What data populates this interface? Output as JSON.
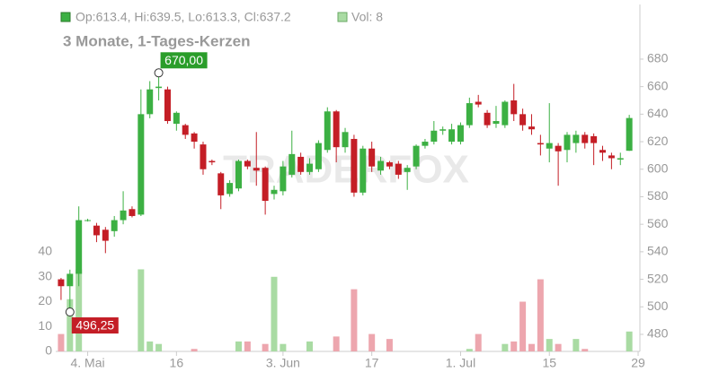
{
  "chart_data": {
    "type": "candlestick",
    "legend_text": "Op:613.4, Hi:639.5, Lo:613.3, Cl:637.2",
    "volume_legend_text": "Vol: 8",
    "subtitle": "3 Monate, 1-Tages-Kerzen",
    "watermark": "TRADERFOX",
    "up_color": "#3cb043",
    "down_color": "#c41e26",
    "volume_up_color": "#a9dba3",
    "volume_down_color": "#eda6ae",
    "open": [
      520,
      515,
      524,
      563,
      559,
      556,
      555,
      563,
      571,
      567,
      640,
      659,
      658,
      633,
      632,
      626,
      618,
      606,
      597,
      582,
      586,
      606,
      601,
      601,
      582,
      584,
      596,
      609,
      598,
      600,
      614,
      642,
      616,
      622,
      583,
      615,
      599,
      605,
      604,
      598,
      602,
      617,
      620,
      628,
      620,
      620,
      632,
      649,
      641,
      633,
      632,
      650,
      640,
      631,
      619,
      615,
      617,
      614,
      619,
      625,
      624,
      614,
      610,
      607,
      613.4
    ],
    "high": [
      521,
      527,
      573,
      564,
      561,
      558,
      566,
      584,
      573,
      658,
      664,
      670,
      660,
      642,
      633,
      627,
      620,
      607,
      598,
      592,
      607,
      607,
      627,
      602,
      588,
      606,
      628,
      612,
      608,
      621,
      645,
      643,
      630,
      625,
      617,
      620,
      609,
      606,
      606,
      603,
      618,
      622,
      635,
      631,
      633,
      634,
      652,
      654,
      643,
      646,
      650,
      662,
      644,
      640,
      625,
      648,
      619,
      627,
      628,
      627,
      626,
      617,
      612,
      612,
      639.5
    ],
    "low": [
      505,
      496.25,
      515,
      562,
      547,
      539,
      551,
      560,
      565,
      566,
      637,
      650,
      633,
      628,
      622,
      615,
      596,
      603,
      571,
      580,
      584,
      600,
      588,
      567,
      578,
      581,
      594,
      596,
      596,
      598,
      612,
      605,
      612,
      580,
      581,
      598,
      596,
      600,
      593,
      585,
      600,
      615,
      618,
      625,
      618,
      618,
      630,
      645,
      630,
      630,
      630,
      635,
      628,
      625,
      610,
      605,
      588,
      605,
      612,
      615,
      603,
      606,
      600,
      603,
      613.3
    ],
    "close": [
      515,
      524,
      563,
      563,
      552,
      548,
      563,
      570,
      566,
      640,
      658,
      660,
      635,
      641,
      625,
      620,
      600,
      605,
      581,
      590,
      606,
      602,
      599,
      577,
      585,
      602,
      611,
      598,
      604,
      619,
      642,
      616,
      627,
      583,
      615,
      602,
      606,
      602,
      596,
      601,
      617,
      620,
      628,
      629,
      629,
      632,
      648,
      647,
      632,
      635,
      649,
      640,
      632,
      629,
      618,
      619,
      613,
      625,
      625,
      619,
      619,
      612,
      608,
      608,
      637.2
    ],
    "volume": [
      7,
      21,
      33,
      0,
      0,
      0,
      0,
      0,
      0,
      33,
      4,
      3,
      0,
      0,
      0,
      1,
      0,
      0,
      0,
      0,
      4,
      4,
      0,
      3,
      30,
      3,
      0,
      0,
      4,
      0,
      0,
      6,
      0,
      25,
      0,
      7,
      0,
      5,
      0,
      0,
      0,
      0,
      0,
      0,
      0,
      0,
      1,
      7,
      0,
      0,
      3,
      4,
      20,
      3,
      29,
      5,
      3,
      0,
      5,
      1,
      0,
      0,
      0,
      0,
      8
    ],
    "xlim": [
      -0.6,
      65.2
    ],
    "xticks": [
      {
        "value": 3,
        "label": "4. Mai"
      },
      {
        "value": 13,
        "label": "16"
      },
      {
        "value": 25,
        "label": "3. Jun"
      },
      {
        "value": 35,
        "label": "17"
      },
      {
        "value": 45,
        "label": "1. Jul"
      },
      {
        "value": 55,
        "label": "15"
      },
      {
        "value": 65,
        "label": "29"
      }
    ],
    "ylim": [
      467.6,
      719.7
    ],
    "yticks": [
      480,
      500,
      520,
      540,
      560,
      580,
      600,
      620,
      640,
      660,
      680
    ],
    "volume_lim": [
      0,
      139.5
    ],
    "volume_ticks": [
      0,
      10,
      20,
      30,
      40
    ],
    "annotations": [
      {
        "label": "670,00",
        "value": 670,
        "index": 11,
        "color": "#2a9d2a"
      },
      {
        "label": "496,25",
        "value": 496.25,
        "index": 1,
        "color": "#c41e26"
      }
    ]
  }
}
